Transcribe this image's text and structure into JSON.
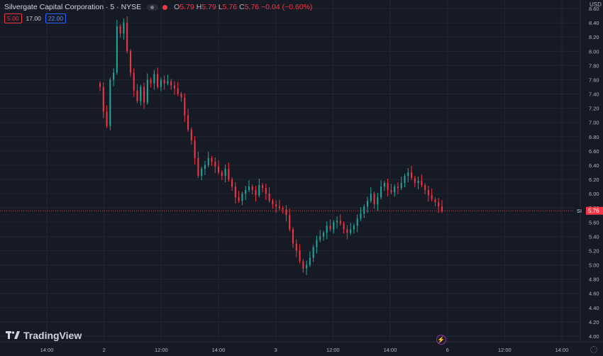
{
  "header": {
    "symbol_title": "Silvergate Capital Corporation · 5 · NYSE",
    "ohlc": [
      {
        "key": "O",
        "value": "5.79"
      },
      {
        "key": "H",
        "value": "5.79"
      },
      {
        "key": "L",
        "value": "5.76"
      },
      {
        "key": "C",
        "value": "5.76"
      }
    ],
    "change": "−0.04 (−0.60%)"
  },
  "indicator": {
    "low": "5.00",
    "mid": "17.00",
    "high": "22.00"
  },
  "currency": "USD",
  "brand": "TradingView",
  "price_tag": {
    "symbol": "SI",
    "value": "5.76"
  },
  "colors": {
    "up": "#26a69a",
    "down": "#f23645",
    "background": "#161a25",
    "grid": "#232632",
    "text": "#b2b5be"
  },
  "chart_data": {
    "type": "candlestick",
    "ylim": [
      3.92,
      8.72
    ],
    "y_ticks": [
      "8.60",
      "8.40",
      "8.20",
      "8.00",
      "7.80",
      "7.60",
      "7.40",
      "7.20",
      "7.00",
      "6.80",
      "6.60",
      "6.40",
      "6.20",
      "6.00",
      "5.80",
      "5.60",
      "5.40",
      "5.20",
      "5.00",
      "4.80",
      "4.60",
      "4.40",
      "4.20",
      "4.00"
    ],
    "x_ticks": [
      "14:00",
      "2",
      "12:00",
      "14:00",
      "3",
      "12:00",
      "14:00",
      "6",
      "12:00",
      "14:00"
    ],
    "last_price": 5.76,
    "closes": [
      7.5,
      7.15,
      6.95,
      7.6,
      7.7,
      8.35,
      8.25,
      8.4,
      8.0,
      7.7,
      7.45,
      7.3,
      7.5,
      7.28,
      7.6,
      7.55,
      7.68,
      7.5,
      7.6,
      7.55,
      7.58,
      7.52,
      7.48,
      7.4,
      7.35,
      7.1,
      6.9,
      6.75,
      6.5,
      6.25,
      6.35,
      6.4,
      6.5,
      6.45,
      6.38,
      6.3,
      6.25,
      6.35,
      6.2,
      6.1,
      5.95,
      5.9,
      6.0,
      6.05,
      6.1,
      6.05,
      5.98,
      6.12,
      6.08,
      6.0,
      5.9,
      5.85,
      5.82,
      5.8,
      5.78,
      5.7,
      5.5,
      5.3,
      5.2,
      5.05,
      4.95,
      5.0,
      5.1,
      5.25,
      5.35,
      5.4,
      5.45,
      5.55,
      5.5,
      5.6,
      5.62,
      5.58,
      5.5,
      5.45,
      5.5,
      5.55,
      5.65,
      5.72,
      5.82,
      5.9,
      6.0,
      5.85,
      5.95,
      6.1,
      6.15,
      6.05,
      6.02,
      6.1,
      6.08,
      6.15,
      6.25,
      6.3,
      6.22,
      6.15,
      6.18,
      6.12,
      6.05,
      5.98,
      5.92,
      5.88,
      5.82,
      5.76
    ]
  }
}
